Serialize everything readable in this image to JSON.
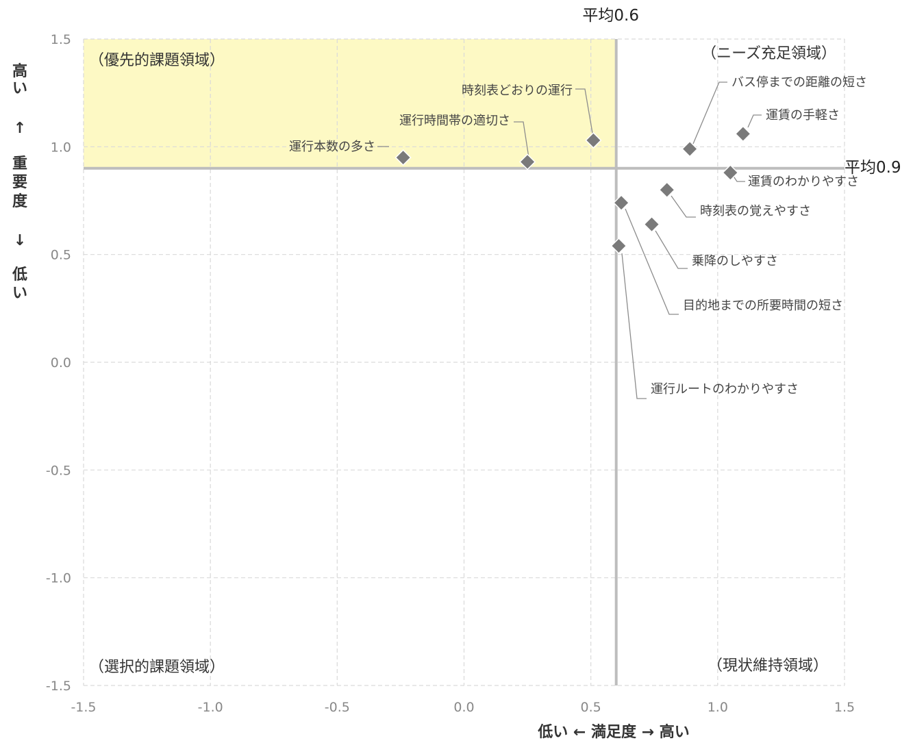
{
  "chart_data": {
    "type": "scatter",
    "xlim": [
      -1.5,
      1.5
    ],
    "ylim": [
      -1.5,
      1.5
    ],
    "x_ticks": [
      "-1.5",
      "-1.0",
      "-0.5",
      "0.0",
      "0.5",
      "1.0",
      "1.5"
    ],
    "y_ticks": [
      "1.5",
      "1.0",
      "0.5",
      "0.0",
      "-0.5",
      "-1.0",
      "-1.5"
    ],
    "xlabel": "低い ← 満足度 → 高い",
    "ylabel": [
      "高",
      "い",
      "↑",
      "重",
      "要",
      "度",
      "↓",
      "低",
      "い"
    ],
    "grid": true,
    "avg_x": {
      "value": 0.6,
      "label": "平均0.6"
    },
    "avg_y": {
      "value": 0.9,
      "label": "平均0.9"
    },
    "quadrants": {
      "top_left": "（優先的課題領域）",
      "top_right": "（ニーズ充足領域）",
      "bottom_left": "（選択的課題領域）",
      "bottom_right": "（現状維持領域）"
    },
    "highlight_color": "#fdf9c4",
    "marker_color": "#7a7a7a",
    "points": [
      {
        "label": "運行本数の多さ",
        "x": -0.24,
        "y": 0.95
      },
      {
        "label": "運行時間帯の適切さ",
        "x": 0.25,
        "y": 0.93
      },
      {
        "label": "時刻表どおりの運行",
        "x": 0.51,
        "y": 1.03
      },
      {
        "label": "バス停までの距離の短さ",
        "x": 0.89,
        "y": 0.99
      },
      {
        "label": "運賃の手軽さ",
        "x": 1.1,
        "y": 1.06
      },
      {
        "label": "運賃のわかりやすさ",
        "x": 1.05,
        "y": 0.88
      },
      {
        "label": "時刻表の覚えやすさ",
        "x": 0.8,
        "y": 0.8
      },
      {
        "label": "目的地までの所要時間の短さ",
        "x": 0.62,
        "y": 0.74
      },
      {
        "label": "乗降のしやすさ",
        "x": 0.74,
        "y": 0.64
      },
      {
        "label": "運行ルートのわかりやすさ",
        "x": 0.61,
        "y": 0.54
      }
    ]
  }
}
